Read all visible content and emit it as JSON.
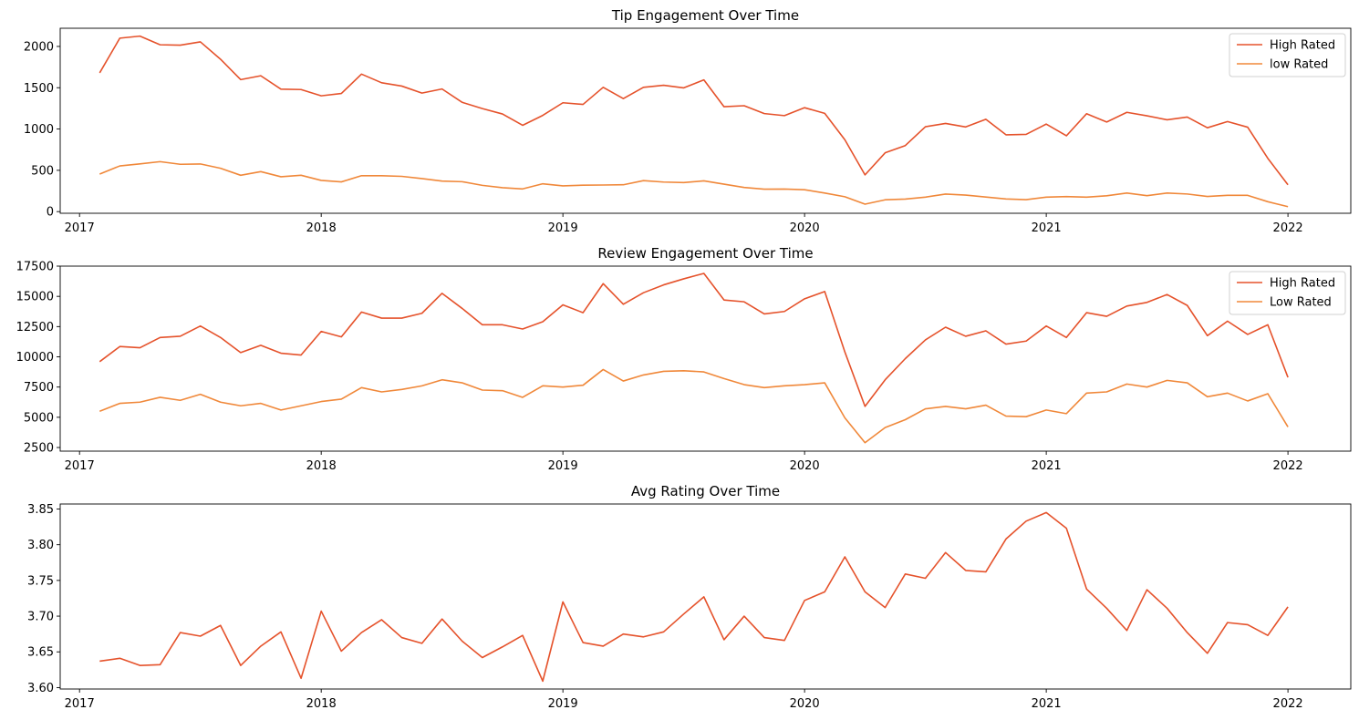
{
  "chart_data": [
    {
      "type": "line",
      "title": "Tip Engagement Over Time",
      "xlabel": "",
      "ylabel": "",
      "xlim": [
        2016.92,
        2022.26
      ],
      "ylim": [
        -20,
        2220
      ],
      "xticks": [
        {
          "label": "2017",
          "value": 2017
        },
        {
          "label": "2018",
          "value": 2018
        },
        {
          "label": "2019",
          "value": 2019
        },
        {
          "label": "2020",
          "value": 2020
        },
        {
          "label": "2021",
          "value": 2021
        },
        {
          "label": "2022",
          "value": 2022
        }
      ],
      "yticks": [
        {
          "label": "0",
          "value": 0
        },
        {
          "label": "500",
          "value": 500
        },
        {
          "label": "1000",
          "value": 1000
        },
        {
          "label": "1500",
          "value": 1500
        },
        {
          "label": "2000",
          "value": 2000
        }
      ],
      "legend": "top-right",
      "grid": false,
      "series": [
        {
          "name": "High Rated",
          "color": "#e5522b",
          "values": [
            1680,
            2100,
            2125,
            2020,
            2015,
            2055,
            1845,
            1598,
            1645,
            1483,
            1478,
            1402,
            1430,
            1665,
            1560,
            1520,
            1435,
            1485,
            1323,
            1248,
            1182,
            1045,
            1165,
            1318,
            1298,
            1505,
            1368,
            1505,
            1530,
            1498,
            1595,
            1270,
            1282,
            1187,
            1162,
            1258,
            1190,
            870,
            445,
            712,
            800,
            1028,
            1068,
            1025,
            1118,
            930,
            935,
            1060,
            918,
            1185,
            1085,
            1202,
            1160,
            1112,
            1145,
            1015,
            1090,
            1022,
            645,
            325
          ]
        },
        {
          "name": "low Rated",
          "color": "#f0883a",
          "values": [
            455,
            553,
            578,
            605,
            573,
            577,
            525,
            440,
            484,
            422,
            440,
            378,
            360,
            435,
            435,
            427,
            400,
            370,
            362,
            318,
            290,
            275,
            337,
            312,
            320,
            322,
            325,
            375,
            358,
            352,
            372,
            332,
            292,
            272,
            273,
            265,
            225,
            180,
            90,
            143,
            152,
            175,
            212,
            200,
            177,
            153,
            145,
            175,
            182,
            175,
            192,
            225,
            193,
            225,
            213,
            183,
            197,
            197,
            120,
            60
          ]
        }
      ]
    },
    {
      "type": "line",
      "title": "Review Engagement Over Time",
      "xlabel": "",
      "ylabel": "",
      "xlim": [
        2016.92,
        2022.26
      ],
      "ylim": [
        2200,
        17500
      ],
      "xticks": [
        {
          "label": "2017",
          "value": 2017
        },
        {
          "label": "2018",
          "value": 2018
        },
        {
          "label": "2019",
          "value": 2019
        },
        {
          "label": "2020",
          "value": 2020
        },
        {
          "label": "2021",
          "value": 2021
        },
        {
          "label": "2022",
          "value": 2022
        }
      ],
      "yticks": [
        {
          "label": "2500",
          "value": 2500
        },
        {
          "label": "5000",
          "value": 5000
        },
        {
          "label": "7500",
          "value": 7500
        },
        {
          "label": "10000",
          "value": 10000
        },
        {
          "label": "12500",
          "value": 12500
        },
        {
          "label": "15000",
          "value": 15000
        },
        {
          "label": "17500",
          "value": 17500
        }
      ],
      "legend": "top-right",
      "grid": false,
      "series": [
        {
          "name": "High Rated",
          "color": "#e5522b",
          "values": [
            9600,
            10850,
            10750,
            11600,
            11700,
            12550,
            11600,
            10350,
            10950,
            10300,
            10150,
            12100,
            11650,
            13700,
            13200,
            13200,
            13600,
            15250,
            14000,
            12650,
            12650,
            12300,
            12900,
            14300,
            13650,
            16050,
            14350,
            15300,
            15950,
            16450,
            16900,
            14700,
            14550,
            13550,
            13750,
            14800,
            15400,
            10400,
            5900,
            8100,
            9850,
            11400,
            12450,
            11700,
            12150,
            11050,
            11300,
            12550,
            11600,
            13650,
            13350,
            14200,
            14500,
            15150,
            14250,
            11750,
            12950,
            11850,
            12650,
            8300
          ]
        },
        {
          "name": "Low Rated",
          "color": "#f0883a",
          "values": [
            5500,
            6150,
            6250,
            6650,
            6400,
            6900,
            6250,
            5950,
            6150,
            5600,
            5950,
            6300,
            6500,
            7450,
            7100,
            7300,
            7600,
            8100,
            7850,
            7250,
            7200,
            6650,
            7600,
            7500,
            7650,
            8950,
            8000,
            8500,
            8800,
            8850,
            8750,
            8200,
            7700,
            7450,
            7600,
            7700,
            7850,
            4950,
            2900,
            4150,
            4800,
            5700,
            5900,
            5700,
            6000,
            5100,
            5050,
            5600,
            5300,
            7000,
            7100,
            7750,
            7500,
            8050,
            7850,
            6700,
            7000,
            6350,
            6950,
            4200
          ]
        }
      ]
    },
    {
      "type": "line",
      "title": "Avg Rating Over Time",
      "xlabel": "",
      "ylabel": "",
      "xlim": [
        2016.92,
        2022.26
      ],
      "ylim": [
        3.598,
        3.857
      ],
      "xticks": [
        {
          "label": "2017",
          "value": 2017
        },
        {
          "label": "2018",
          "value": 2018
        },
        {
          "label": "2019",
          "value": 2019
        },
        {
          "label": "2020",
          "value": 2020
        },
        {
          "label": "2021",
          "value": 2021
        },
        {
          "label": "2022",
          "value": 2022
        }
      ],
      "yticks": [
        {
          "label": "3.60",
          "value": 3.6
        },
        {
          "label": "3.65",
          "value": 3.65
        },
        {
          "label": "3.70",
          "value": 3.7
        },
        {
          "label": "3.75",
          "value": 3.75
        },
        {
          "label": "3.80",
          "value": 3.8
        },
        {
          "label": "3.85",
          "value": 3.85
        }
      ],
      "legend": "none",
      "grid": false,
      "series": [
        {
          "color": "#e5522b",
          "values": [
            3.637,
            3.641,
            3.631,
            3.632,
            3.677,
            3.672,
            3.687,
            3.631,
            3.658,
            3.678,
            3.613,
            3.707,
            3.651,
            3.677,
            3.695,
            3.67,
            3.662,
            3.696,
            3.665,
            3.642,
            3.657,
            3.673,
            3.609,
            3.72,
            3.663,
            3.658,
            3.675,
            3.671,
            3.678,
            3.703,
            3.727,
            3.667,
            3.7,
            3.67,
            3.666,
            3.722,
            3.734,
            3.783,
            3.734,
            3.712,
            3.759,
            3.753,
            3.789,
            3.764,
            3.762,
            3.808,
            3.833,
            3.845,
            3.823,
            3.738,
            3.711,
            3.68,
            3.737,
            3.711,
            3.677,
            3.648,
            3.691,
            3.688,
            3.673,
            3.713
          ]
        }
      ]
    }
  ]
}
